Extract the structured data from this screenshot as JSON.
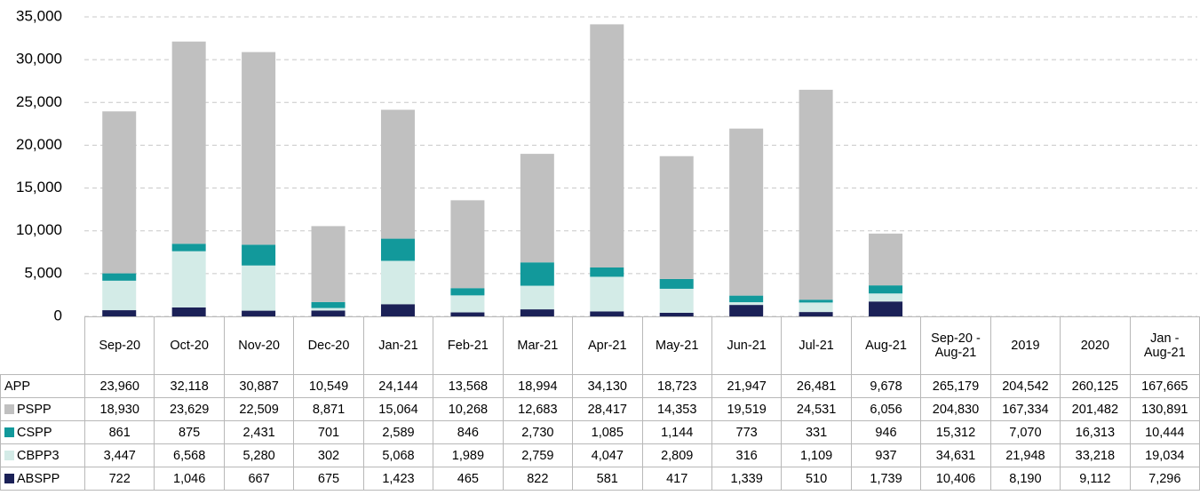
{
  "chart_data": {
    "type": "bar",
    "stacked": true,
    "categories": [
      "Sep-20",
      "Oct-20",
      "Nov-20",
      "Dec-20",
      "Jan-21",
      "Feb-21",
      "Mar-21",
      "Apr-21",
      "May-21",
      "Jun-21",
      "Jul-21",
      "Aug-21"
    ],
    "ylim": [
      0,
      35000
    ],
    "yticks": [
      0,
      {
        "value": 5000,
        "label": "5,000"
      },
      {
        "value": 10000,
        "label": "10,000"
      },
      {
        "value": 15000,
        "label": "15,000"
      },
      {
        "value": 20000,
        "label": "20,000"
      },
      {
        "value": 25000,
        "label": "25,000"
      },
      {
        "value": 30000,
        "label": "30,000"
      },
      {
        "value": 35000,
        "label": "35,000"
      }
    ],
    "grid": true,
    "series": [
      {
        "name": "PSPP",
        "color": "#c0c0c0",
        "values": [
          18930,
          23629,
          22509,
          8871,
          15064,
          10268,
          12683,
          28417,
          14353,
          19519,
          24531,
          6056
        ]
      },
      {
        "name": "CSPP",
        "color": "#12999b",
        "values": [
          861,
          875,
          2431,
          701,
          2589,
          846,
          2730,
          1085,
          1144,
          773,
          331,
          946
        ]
      },
      {
        "name": "CBPP3",
        "color": "#d3ebe7",
        "values": [
          3447,
          6568,
          5280,
          302,
          5068,
          1989,
          2759,
          4047,
          2809,
          316,
          1109,
          937
        ]
      },
      {
        "name": "ABSPP",
        "color": "#1b2157",
        "values": [
          722,
          1046,
          667,
          675,
          1423,
          465,
          822,
          581,
          417,
          1339,
          510,
          1739
        ]
      }
    ]
  },
  "data_table": {
    "summary_columns": [
      "Sep-20 -\nAug-21",
      "2019",
      "2020",
      "Jan -\nAug-21"
    ],
    "total_label": "APP",
    "rows": [
      [
        "23,960",
        "32,118",
        "30,887",
        "10,549",
        "24,144",
        "13,568",
        "18,994",
        "34,130",
        "18,723",
        "21,947",
        "26,481",
        "9,678",
        "265,179",
        "204,542",
        "260,125",
        "167,665"
      ],
      [
        "18,930",
        "23,629",
        "22,509",
        "8,871",
        "15,064",
        "10,268",
        "12,683",
        "28,417",
        "14,353",
        "19,519",
        "24,531",
        "6,056",
        "204,830",
        "167,334",
        "201,482",
        "130,891"
      ],
      [
        "861",
        "875",
        "2,431",
        "701",
        "2,589",
        "846",
        "2,730",
        "1,085",
        "1,144",
        "773",
        "331",
        "946",
        "15,312",
        "7,070",
        "16,313",
        "10,444"
      ],
      [
        "3,447",
        "6,568",
        "5,280",
        "302",
        "5,068",
        "1,989",
        "2,759",
        "4,047",
        "2,809",
        "316",
        "1,109",
        "937",
        "34,631",
        "21,948",
        "33,218",
        "19,034"
      ],
      [
        "722",
        "1,046",
        "667",
        "675",
        "1,423",
        "465",
        "822",
        "581",
        "417",
        "1,339",
        "510",
        "1,739",
        "10,406",
        "8,190",
        "9,112",
        "7,296"
      ]
    ]
  }
}
